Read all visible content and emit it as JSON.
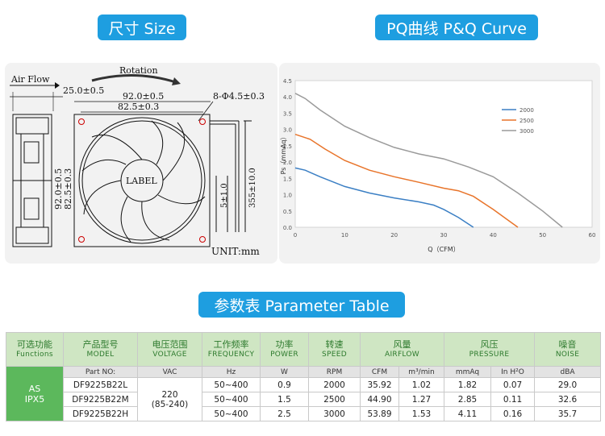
{
  "headers": {
    "size": "尺寸 Size",
    "pq": "PQ曲线 P&Q Curve",
    "param": "参数表 Parameter Table"
  },
  "drawing": {
    "air_flow": "Air Flow",
    "rotation": "Rotation",
    "dim_25": "25.0±0.5",
    "dim_92_top": "92.0±0.5",
    "dim_825_top": "82.5±0.3",
    "hole": "8-Φ4.5±0.3",
    "dim_92_side": "92.0±0.5",
    "dim_825_side": "82.5±0.3",
    "dim_5": "5±1.0",
    "dim_355": "355±10.0",
    "label": "LABEL",
    "unit": "UNIT:mm"
  },
  "chart_data": {
    "type": "line",
    "xlabel": "Q（CFM）",
    "ylabel": "Ps（mmAq）",
    "xlim": [
      0,
      60
    ],
    "ylim": [
      0,
      4.5
    ],
    "xticks": [
      "0",
      "10",
      "20",
      "30",
      "40",
      "50",
      "60"
    ],
    "yticks": [
      "0.0",
      "0.5",
      "1.0",
      "1.5",
      "2.0",
      "2.5",
      "3.0",
      "3.5",
      "4.0",
      "4.5"
    ],
    "legend_position": "top-right",
    "series": [
      {
        "name": "2000",
        "color": "#3b7fc4",
        "x": [
          0,
          2,
          5,
          10,
          15,
          20,
          25,
          28,
          30,
          33,
          36
        ],
        "y": [
          1.82,
          1.75,
          1.55,
          1.25,
          1.05,
          0.9,
          0.78,
          0.68,
          0.55,
          0.3,
          0.0
        ]
      },
      {
        "name": "2500",
        "color": "#e8742a",
        "x": [
          0,
          3,
          6,
          10,
          15,
          20,
          25,
          30,
          33,
          36,
          40,
          45
        ],
        "y": [
          2.85,
          2.7,
          2.4,
          2.05,
          1.75,
          1.55,
          1.38,
          1.2,
          1.12,
          0.95,
          0.55,
          0.0
        ]
      },
      {
        "name": "3000",
        "color": "#9a9a9a",
        "x": [
          0,
          2,
          5,
          10,
          15,
          20,
          25,
          30,
          35,
          40,
          45,
          50,
          54
        ],
        "y": [
          4.11,
          3.95,
          3.6,
          3.1,
          2.75,
          2.45,
          2.25,
          2.1,
          1.85,
          1.55,
          1.05,
          0.5,
          0.0
        ]
      }
    ]
  },
  "table": {
    "headers": [
      {
        "cn": "可选功能",
        "en": "Functions"
      },
      {
        "cn": "产品型号",
        "en": "MODEL"
      },
      {
        "cn": "电压范围",
        "en": "VOLTAGE"
      },
      {
        "cn": "工作频率",
        "en": "FREQUENCY"
      },
      {
        "cn": "功率",
        "en": "POWER"
      },
      {
        "cn": "转速",
        "en": "SPEED"
      },
      {
        "cn": "风量",
        "en": "AIRFLOW"
      },
      {
        "cn": "风压",
        "en": "PRESSURE"
      },
      {
        "cn": "噪音",
        "en": "NOISE"
      }
    ],
    "units": {
      "model": "Part NO:",
      "voltage": "VAC",
      "frequency": "Hz",
      "power": "W",
      "speed": "RPM",
      "cfm": "CFM",
      "m3": "m³/min",
      "mmaq": "mmAq",
      "inh2o": "In H²O",
      "noise": "dBA"
    },
    "function": "AS\nIPX5",
    "function_l1": "AS",
    "function_l2": "IPX5",
    "voltage_l1": "220",
    "voltage_l2": "(85-240)",
    "rows": [
      {
        "model": "DF9225B22L",
        "frequency": "50~400",
        "power": "0.9",
        "speed": "2000",
        "cfm": "35.92",
        "m3": "1.02",
        "mmaq": "1.82",
        "inh2o": "0.07",
        "noise": "29.0"
      },
      {
        "model": "DF9225B22M",
        "frequency": "50~400",
        "power": "1.5",
        "speed": "2500",
        "cfm": "44.90",
        "m3": "1.27",
        "mmaq": "2.85",
        "inh2o": "0.11",
        "noise": "32.6"
      },
      {
        "model": "DF9225B22H",
        "frequency": "50~400",
        "power": "2.5",
        "speed": "3000",
        "cfm": "53.89",
        "m3": "1.53",
        "mmaq": "4.11",
        "inh2o": "0.16",
        "noise": "35.7"
      }
    ]
  },
  "colors": {
    "accent": "#1e9ee0",
    "table_header": "#cfe6c3",
    "function_cell": "#5cb85c"
  }
}
